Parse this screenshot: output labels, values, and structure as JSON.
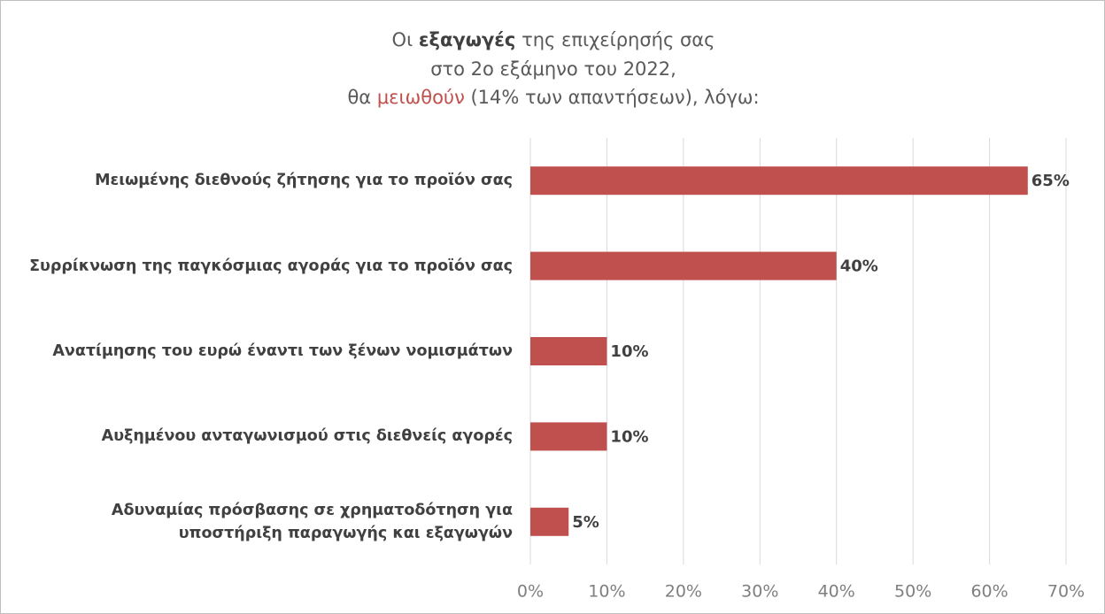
{
  "chart_data": {
    "type": "bar",
    "orientation": "horizontal",
    "title": [
      [
        "Οι ",
        "εξαγωγές",
        " της επιχείρησής σας"
      ],
      [
        "στο 2ο εξάμηνο του 2022,"
      ],
      [
        "θα ",
        "μειωθούν",
        " (14% των απαντήσεων), λόγω:"
      ]
    ],
    "categories": [
      "Μειωμένης διεθνούς ζήτησης για το προϊόν σας",
      "Συρρίκνωση της παγκόσμιας αγοράς για το προϊόν σας",
      "Ανατίμησης του ευρώ έναντι των ξένων νομισμάτων",
      "Αυξημένου ανταγωνισμού στις διεθνείς αγορές",
      "Αδυναμίας πρόσβασης σε χρηματοδότηση για υποστήριξη παραγωγής και εξαγωγών"
    ],
    "values": [
      65,
      40,
      10,
      10,
      5
    ],
    "value_labels": [
      "65%",
      "40%",
      "10%",
      "10%",
      "5%"
    ],
    "color": "#c0504d",
    "xlim": [
      0,
      70
    ],
    "xticks": [
      {
        "value": 0,
        "label": "0%"
      },
      {
        "value": 10,
        "label": "10%"
      },
      {
        "value": 20,
        "label": "20%"
      },
      {
        "value": 30,
        "label": "30%"
      },
      {
        "value": 40,
        "label": "40%"
      },
      {
        "value": 50,
        "label": "50%"
      },
      {
        "value": 60,
        "label": "60%"
      },
      {
        "value": 70,
        "label": "70%"
      }
    ],
    "grid": true
  }
}
